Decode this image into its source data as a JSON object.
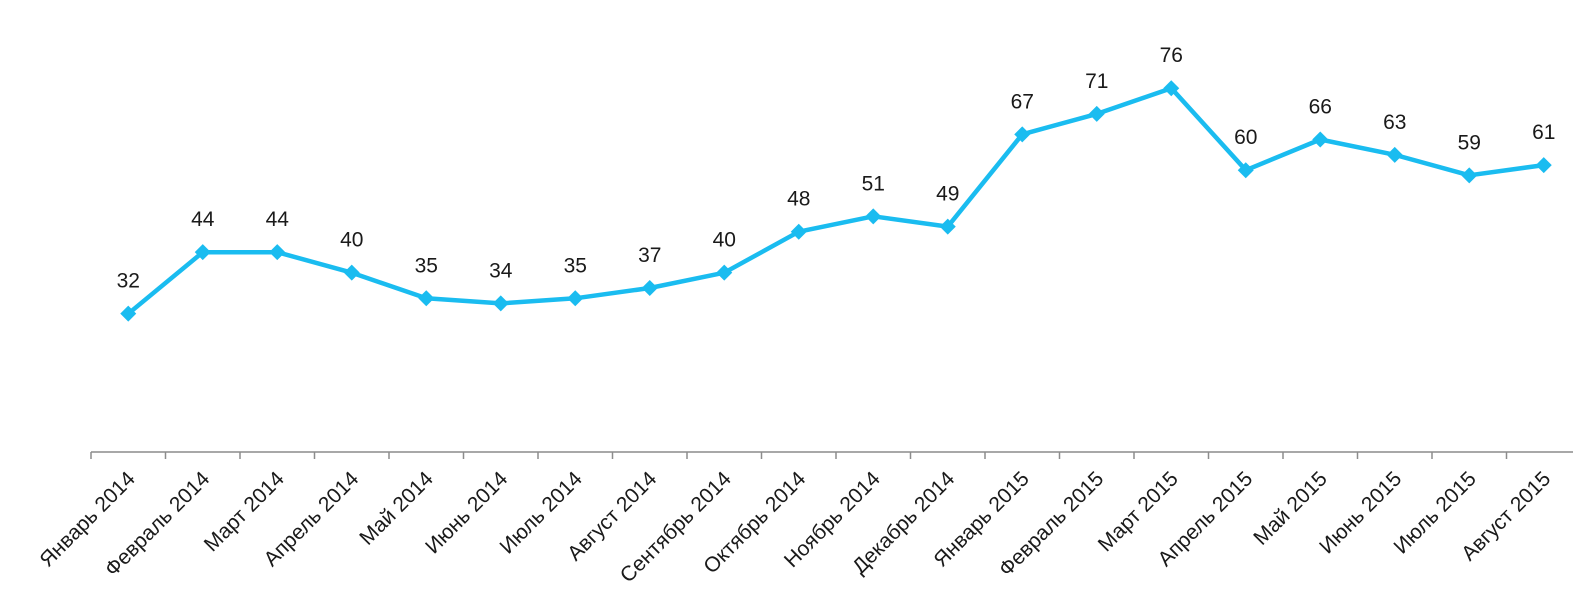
{
  "chart_data": {
    "type": "line",
    "title": "",
    "xlabel": "",
    "ylabel": "",
    "categories": [
      "Январь 2014",
      "Февраль 2014",
      "Март 2014",
      "Апрель 2014",
      "Май 2014",
      "Июнь 2014",
      "Июль 2014",
      "Август 2014",
      "Сентябрь 2014",
      "Октябрь 2014",
      "Ноябрь 2014",
      "Декабрь 2014",
      "Январь 2015",
      "Февраль 2015",
      "Март 2015",
      "Апрель 2015",
      "Май 2015",
      "Июнь 2015",
      "Июль 2015",
      "Август 2015"
    ],
    "series": [
      {
        "values": [
          32,
          44,
          44,
          40,
          35,
          34,
          35,
          37,
          40,
          48,
          51,
          49,
          67,
          71,
          76,
          60,
          66,
          63,
          59,
          61
        ]
      }
    ],
    "data_labels": [
      "32",
      "44",
      "44",
      "40",
      "35",
      "34",
      "35",
      "37",
      "40",
      "48",
      "51",
      "49",
      "67",
      "71",
      "76",
      "60",
      "66",
      "63",
      "59",
      "61"
    ],
    "ylim": [
      5,
      86
    ],
    "grid": false,
    "legend": "none",
    "colors": {
      "line": "#1ABCF0",
      "axis": "#8c8c8c",
      "text": "#1a1a1a"
    }
  }
}
